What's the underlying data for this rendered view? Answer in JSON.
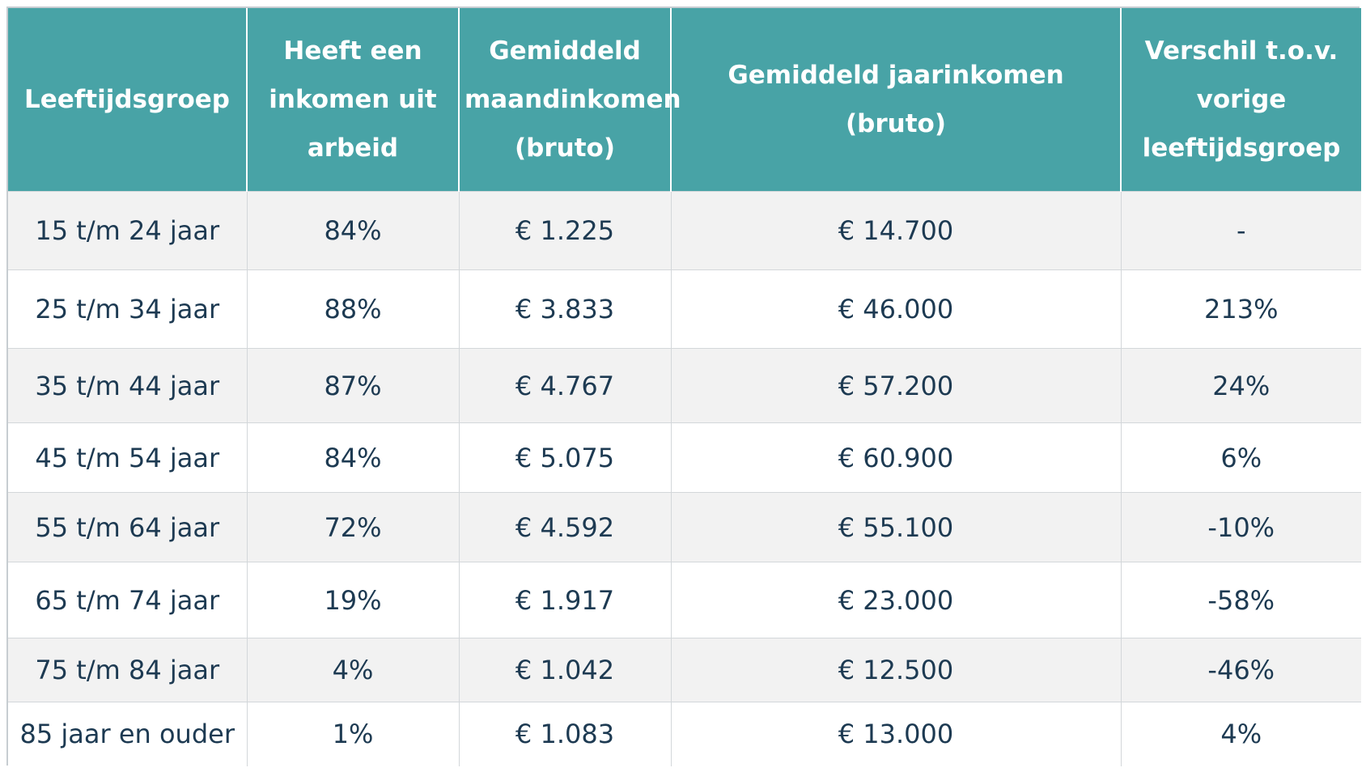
{
  "table": {
    "headers": [
      "Leeftijdsgroep",
      "Heeft een inkomen uit arbeid",
      "Gemiddeld maandinkomen (bruto)",
      "Gemiddeld jaarinkomen (bruto)",
      "Verschil t.o.v. vorige leeftijdsgroep"
    ],
    "rows": [
      [
        "15 t/m 24 jaar",
        "84%",
        "€ 1.225",
        "€ 14.700",
        "-"
      ],
      [
        "25 t/m 34 jaar",
        "88%",
        "€ 3.833",
        "€ 46.000",
        "213%"
      ],
      [
        "35 t/m 44 jaar",
        "87%",
        "€ 4.767",
        "€ 57.200",
        "24%"
      ],
      [
        "45 t/m 54 jaar",
        "84%",
        "€ 5.075",
        "€ 60.900",
        "6%"
      ],
      [
        "55 t/m 64 jaar",
        "72%",
        "€ 4.592",
        "€ 55.100",
        "-10%"
      ],
      [
        "65 t/m 74 jaar",
        "19%",
        "€ 1.917",
        "€ 23.000",
        "-58%"
      ],
      [
        "75 t/m 84 jaar",
        "4%",
        "€ 1.042",
        "€ 12.500",
        "-46%"
      ],
      [
        "85 jaar en ouder",
        "1%",
        "€ 1.083",
        "€ 13.000",
        "4%"
      ]
    ]
  },
  "colors": {
    "header_bg": "#48a3a6",
    "header_text": "#ffffff",
    "body_text": "#1d3a52",
    "stripe_bg": "#f2f2f2"
  }
}
